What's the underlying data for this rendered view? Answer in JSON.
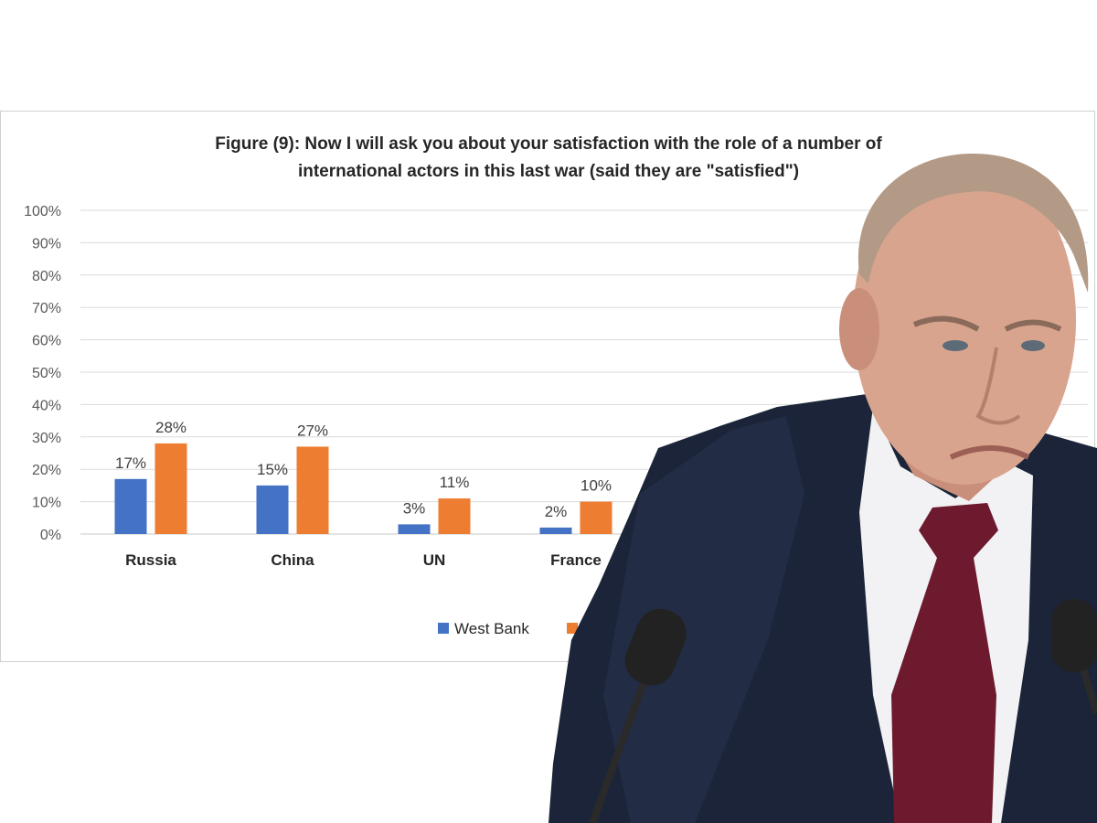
{
  "chart_data": {
    "type": "bar",
    "title": "Figure (9): Now I will ask you about your satisfaction with the role of a number of international actors in this last war (said they are \"satisfied\")",
    "categories": [
      "Russia",
      "China",
      "UN",
      "France"
    ],
    "series": [
      {
        "name": "West Bank",
        "values": [
          17,
          15,
          3,
          2
        ],
        "labels": [
          "17%",
          "15%",
          "3%",
          "2%"
        ],
        "color": "#4472C4"
      },
      {
        "values": [
          28,
          27,
          11,
          10
        ],
        "labels": [
          "28%",
          "27%",
          "11%",
          "10%"
        ],
        "color": "#ED7D31"
      }
    ],
    "yticks": [
      "0%",
      "10%",
      "20%",
      "30%",
      "40%",
      "50%",
      "60%",
      "70%",
      "80%",
      "90%",
      "100%"
    ],
    "ylim": [
      0,
      100
    ],
    "grid": true,
    "legend": "bottom"
  },
  "overlay": {
    "icon": "person-photo-icon",
    "colors": {
      "suit": "#1b2438",
      "shirt": "#f2f2f4",
      "tie": "#6e1a2e",
      "skin": "#d9a48e",
      "hair": "#b39a86"
    }
  }
}
